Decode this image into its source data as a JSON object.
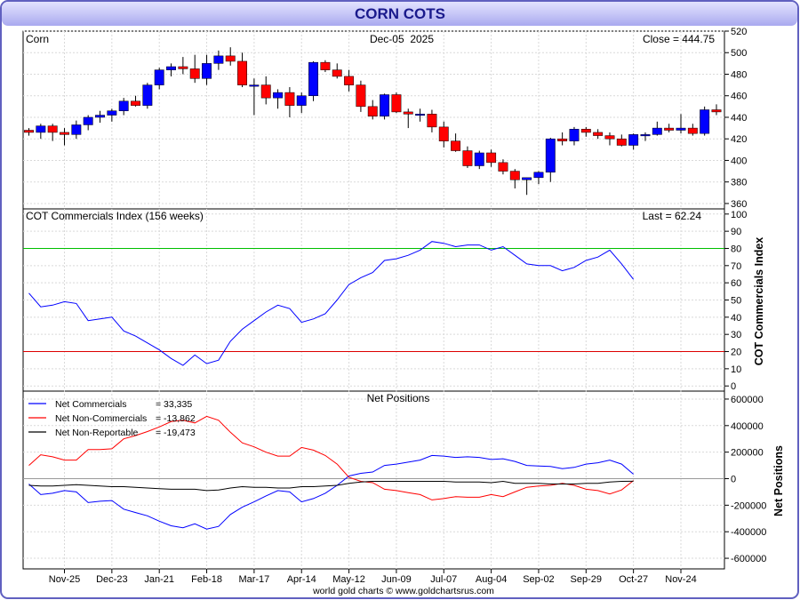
{
  "header": {
    "title": "CORN COTS"
  },
  "footer": {
    "credit": "world gold charts © www.goldchartsrus.com"
  },
  "colors": {
    "up_candle": "#0000ff",
    "down_candle": "#ff0000",
    "commercials": "#0000ff",
    "non_commercials": "#ff0000",
    "non_reportable": "#000000",
    "line_80": "#00c000",
    "line_20": "#dd0000",
    "header_bg": "#c7c7f7"
  },
  "chart_data": [
    {
      "type": "candlestick",
      "label": "Corn",
      "date_text": "Dec-05  2025",
      "close_text": "Close = 444.75",
      "ylim": [
        355,
        520
      ],
      "yticks": [
        360,
        380,
        400,
        420,
        440,
        460,
        480,
        500,
        520
      ],
      "x_labels": [
        "Nov-25",
        "Dec-23",
        "Jan-21",
        "Feb-18",
        "Mar-17",
        "Apr-14",
        "May-12",
        "Jun-09",
        "Jul-07",
        "Aug-04",
        "Sep-02",
        "Sep-29",
        "Oct-27",
        "Nov-24"
      ],
      "candles": [
        [
          428,
          430,
          423,
          426
        ],
        [
          426,
          434,
          420,
          432
        ],
        [
          432,
          434,
          418,
          426
        ],
        [
          426,
          430,
          414,
          424
        ],
        [
          424,
          437,
          420,
          433
        ],
        [
          433,
          442,
          428,
          440
        ],
        [
          440,
          446,
          435,
          442
        ],
        [
          442,
          448,
          436,
          446
        ],
        [
          446,
          458,
          442,
          455
        ],
        [
          455,
          460,
          450,
          451
        ],
        [
          451,
          472,
          448,
          470
        ],
        [
          470,
          486,
          466,
          484
        ],
        [
          484,
          490,
          478,
          487
        ],
        [
          487,
          496,
          480,
          485
        ],
        [
          485,
          498,
          472,
          476
        ],
        [
          476,
          498,
          470,
          490
        ],
        [
          490,
          502,
          484,
          497
        ],
        [
          497,
          505,
          488,
          492
        ],
        [
          492,
          500,
          468,
          470
        ],
        [
          470,
          476,
          442,
          470
        ],
        [
          470,
          478,
          452,
          458
        ],
        [
          458,
          466,
          448,
          463
        ],
        [
          463,
          468,
          440,
          451
        ],
        [
          451,
          463,
          444,
          460
        ],
        [
          460,
          492,
          455,
          491
        ],
        [
          491,
          493,
          482,
          484
        ],
        [
          484,
          490,
          476,
          478
        ],
        [
          478,
          484,
          464,
          470
        ],
        [
          470,
          474,
          445,
          450
        ],
        [
          450,
          456,
          438,
          441
        ],
        [
          441,
          462,
          438,
          461
        ],
        [
          461,
          463,
          444,
          445
        ],
        [
          445,
          448,
          430,
          443
        ],
        [
          443,
          448,
          436,
          443
        ],
        [
          443,
          447,
          426,
          431
        ],
        [
          431,
          436,
          412,
          418
        ],
        [
          418,
          425,
          408,
          409
        ],
        [
          409,
          413,
          393,
          395
        ],
        [
          395,
          409,
          392,
          407
        ],
        [
          407,
          410,
          394,
          398
        ],
        [
          398,
          401,
          387,
          390
        ],
        [
          390,
          392,
          374,
          382
        ],
        [
          382,
          384,
          368,
          384
        ],
        [
          384,
          390,
          378,
          389
        ],
        [
          389,
          421,
          380,
          420
        ],
        [
          420,
          426,
          414,
          418
        ],
        [
          418,
          431,
          414,
          429
        ],
        [
          429,
          431,
          422,
          426
        ],
        [
          426,
          429,
          420,
          423
        ],
        [
          423,
          426,
          414,
          420
        ],
        [
          420,
          424,
          413,
          414
        ],
        [
          414,
          425,
          410,
          424
        ],
        [
          424,
          426,
          418,
          424
        ],
        [
          424,
          436,
          423,
          430
        ],
        [
          430,
          434,
          426,
          428
        ],
        [
          428,
          443,
          425,
          430
        ],
        [
          430,
          434,
          423,
          425
        ],
        [
          425,
          450,
          423,
          447
        ],
        [
          447,
          452,
          442,
          445
        ]
      ]
    },
    {
      "type": "line",
      "label": "COT Commercials Index (156 weeks)",
      "last_text": "Last = 62.24",
      "ylabel": "COT Commercials Index",
      "ylim": [
        -3,
        103
      ],
      "yticks": [
        0,
        10,
        20,
        30,
        40,
        50,
        60,
        70,
        80,
        90,
        100
      ],
      "reference_lines": [
        80,
        20
      ],
      "series": [
        {
          "values": [
            54,
            46,
            47,
            49,
            48,
            38,
            39,
            40,
            32,
            29,
            25,
            21,
            16,
            12,
            18,
            13,
            15,
            26,
            33,
            38,
            43,
            47,
            45,
            37,
            39,
            42,
            50,
            59,
            63,
            66,
            73,
            74,
            76,
            79,
            84,
            83,
            81,
            82,
            82,
            79,
            81,
            76,
            71,
            70,
            70,
            67,
            69,
            73,
            75,
            79,
            71,
            62
          ]
        }
      ]
    },
    {
      "type": "line",
      "label": "Net Positions",
      "ylabel": "Net Positions",
      "ylim": [
        -680000,
        660000
      ],
      "yticks": [
        -600000,
        -400000,
        -200000,
        0,
        200000,
        400000,
        600000
      ],
      "series": [
        {
          "name": "Net Commercials",
          "value_text": "= 33,335",
          "values": [
            -40000,
            -120000,
            -110000,
            -90000,
            -100000,
            -180000,
            -170000,
            -165000,
            -230000,
            -255000,
            -280000,
            -320000,
            -355000,
            -370000,
            -340000,
            -380000,
            -360000,
            -270000,
            -215000,
            -175000,
            -130000,
            -90000,
            -100000,
            -175000,
            -150000,
            -110000,
            -50000,
            20000,
            40000,
            50000,
            100000,
            110000,
            125000,
            140000,
            175000,
            170000,
            160000,
            165000,
            160000,
            145000,
            150000,
            130000,
            100000,
            95000,
            92000,
            75000,
            85000,
            110000,
            120000,
            140000,
            110000,
            33335
          ]
        },
        {
          "name": "Net Non-Commercials",
          "value_text": "= -13,862",
          "values": [
            100000,
            180000,
            165000,
            140000,
            140000,
            220000,
            220000,
            225000,
            300000,
            325000,
            355000,
            390000,
            430000,
            440000,
            420000,
            470000,
            440000,
            350000,
            270000,
            240000,
            200000,
            170000,
            170000,
            235000,
            215000,
            175000,
            110000,
            10000,
            -20000,
            -30000,
            -80000,
            -90000,
            -105000,
            -120000,
            -160000,
            -150000,
            -135000,
            -140000,
            -140000,
            -120000,
            -135000,
            -100000,
            -65000,
            -55000,
            -50000,
            -35000,
            -50000,
            -80000,
            -90000,
            -115000,
            -85000,
            -13862
          ]
        },
        {
          "name": "Net Non-Reportable",
          "value_text": "= -19,473",
          "values": [
            -50000,
            -55000,
            -55000,
            -50000,
            -45000,
            -50000,
            -55000,
            -60000,
            -60000,
            -65000,
            -70000,
            -75000,
            -80000,
            -80000,
            -80000,
            -90000,
            -85000,
            -70000,
            -60000,
            -65000,
            -65000,
            -70000,
            -70000,
            -60000,
            -60000,
            -55000,
            -50000,
            -35000,
            -25000,
            -20000,
            -20000,
            -20000,
            -20000,
            -20000,
            -20000,
            -20000,
            -25000,
            -25000,
            -25000,
            -30000,
            -20000,
            -35000,
            -35000,
            -35000,
            -40000,
            -40000,
            -40000,
            -35000,
            -35000,
            -25000,
            -20000,
            -19473
          ]
        }
      ]
    }
  ]
}
